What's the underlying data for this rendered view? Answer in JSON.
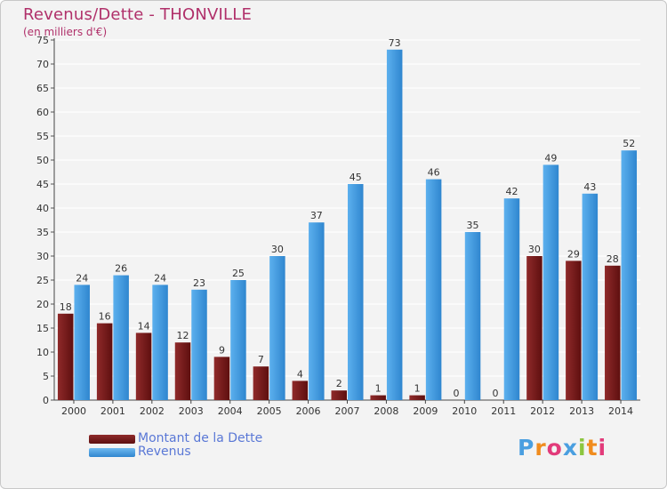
{
  "chart_data": {
    "type": "bar",
    "title": "Revenus/Dette - THONVILLE",
    "subtitle": "(en milliers d'€)",
    "xlabel": "",
    "ylabel": "",
    "ylim": [
      0,
      75
    ],
    "yticks": [
      0,
      5,
      10,
      15,
      20,
      25,
      30,
      35,
      40,
      45,
      50,
      55,
      60,
      65,
      70,
      75
    ],
    "grid": true,
    "categories": [
      "2000",
      "2001",
      "2002",
      "2003",
      "2004",
      "2005",
      "2006",
      "2007",
      "2008",
      "2009",
      "2010",
      "2011",
      "2012",
      "2013",
      "2014"
    ],
    "series": [
      {
        "name": "Montant de la Dette",
        "color": "#7a1a1a",
        "values": [
          18,
          16,
          14,
          12,
          9,
          7,
          4,
          2,
          1,
          1,
          0,
          0,
          30,
          29,
          28
        ]
      },
      {
        "name": "Revenus",
        "color": "#4a9fe0",
        "values": [
          24,
          26,
          24,
          23,
          25,
          30,
          37,
          45,
          73,
          46,
          35,
          42,
          49,
          43,
          52
        ]
      }
    ],
    "legend_position": "bottom-left"
  },
  "brand": {
    "logo_text": "Proxiti",
    "logo_colors": [
      "#4a9fe0",
      "#f08c1e",
      "#e23b7a",
      "#4a9fe0",
      "#8cc63f",
      "#f08c1e",
      "#e23b7a"
    ]
  }
}
